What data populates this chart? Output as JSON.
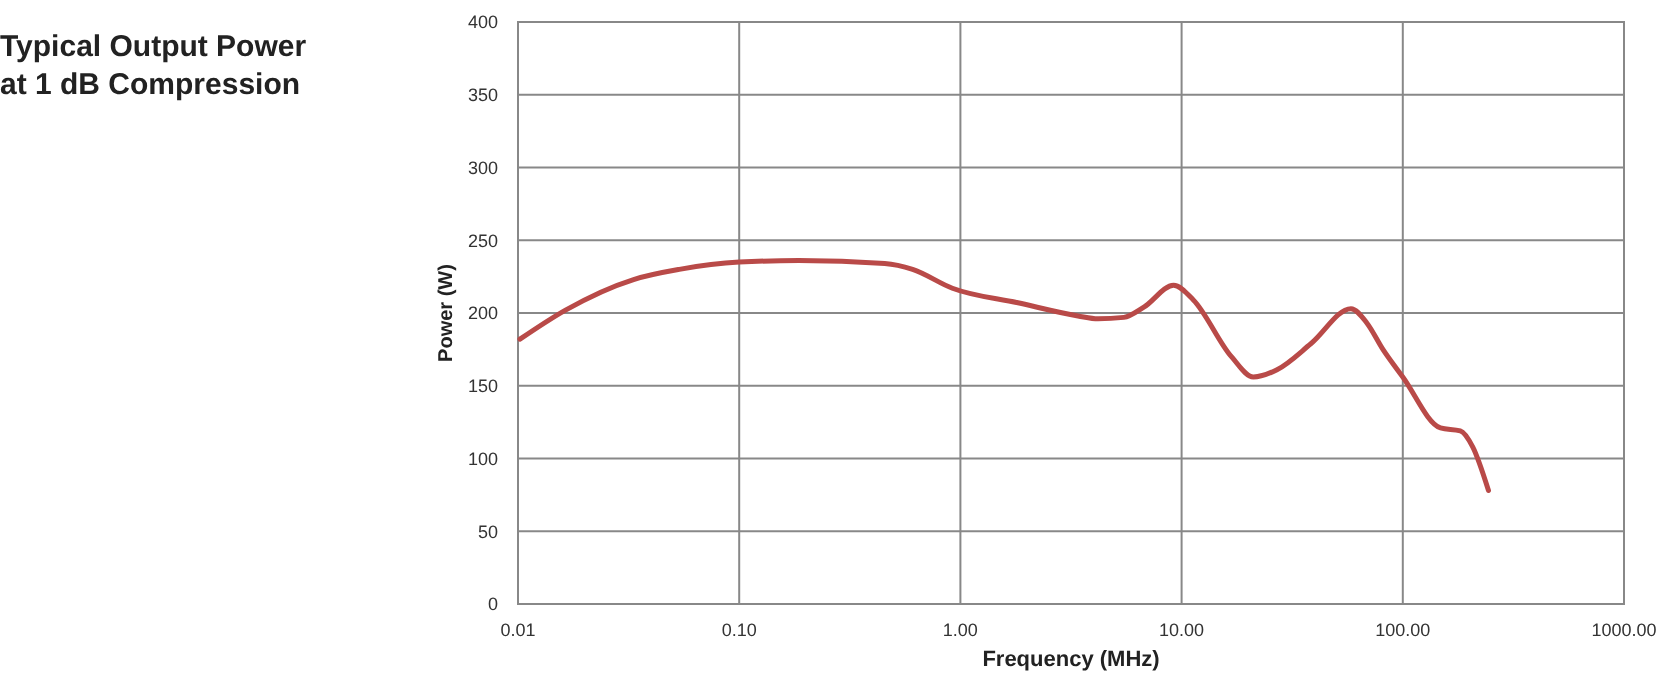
{
  "chart_data": {
    "type": "line",
    "title": "Typical Output Power\nat 1 dB Compression",
    "xlabel": "Frequency (MHz)",
    "ylabel": "Power (W)",
    "log": "x",
    "grid": true,
    "marker": "none",
    "line_style": "solid",
    "xlim": [
      0.01,
      1000
    ],
    "xticks": [
      {
        "value": 0.01,
        "label": "0.01"
      },
      {
        "value": 0.1,
        "label": "0.10"
      },
      {
        "value": 1,
        "label": "1.00"
      },
      {
        "value": 10,
        "label": "10.00"
      },
      {
        "value": 100,
        "label": "100.00"
      },
      {
        "value": 1000,
        "label": "1000.00"
      }
    ],
    "ylim": [
      0,
      400
    ],
    "yticks": [
      0,
      50,
      100,
      150,
      200,
      250,
      300,
      350,
      400
    ],
    "x": [
      0.0102,
      0.0164,
      0.0333,
      0.0536,
      0.1,
      0.186,
      0.455,
      0.608,
      0.92,
      1.82,
      3.4,
      4.19,
      5.48,
      6.75,
      9.2,
      11.3,
      16.8,
      21.1,
      27,
      38.5,
      58.3,
      68.9,
      81.3,
      100,
      148,
      182,
      207,
      244
    ],
    "series": [
      {
        "color": "#b94a48",
        "values": [
          182,
          202,
          223,
          230,
          235,
          236,
          234,
          230,
          217,
          207,
          198,
          196,
          197,
          204,
          219,
          209,
          170,
          156,
          161,
          179,
          203,
          193,
          175,
          156,
          121,
          119,
          108,
          78
        ]
      }
    ]
  }
}
